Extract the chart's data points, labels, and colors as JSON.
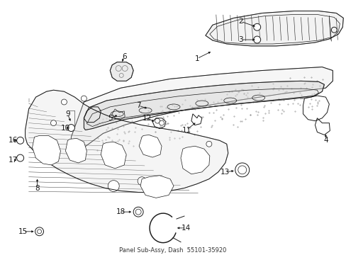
{
  "bg_color": "#ffffff",
  "fig_width": 4.89,
  "fig_height": 3.6,
  "dpi": 100,
  "line_color": "#1a1a1a",
  "label_fontsize": 7.5,
  "caption": "Panel Sub-Assy, Dash  55101-35920",
  "caption_fontsize": 6
}
